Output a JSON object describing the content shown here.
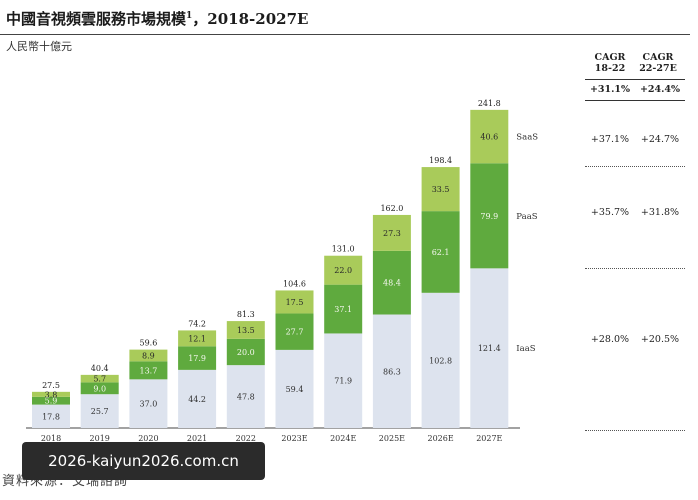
{
  "title": "中國音視頻雲服務市場規模",
  "title_note": "1",
  "title_suffix": "，2018-2027E",
  "unit": "人民幣十億元",
  "table": {
    "headers": [
      {
        "line1": "CAGR",
        "line2": "18-22"
      },
      {
        "line1": "CAGR",
        "line2": "22-27E"
      }
    ],
    "total": [
      "+31.1%",
      "+24.4%"
    ],
    "rows": [
      {
        "segment": "SaaS",
        "values": [
          "+37.1%",
          "+24.7%"
        ]
      },
      {
        "segment": "PaaS",
        "values": [
          "+35.7%",
          "+31.8%"
        ]
      },
      {
        "segment": "IaaS",
        "values": [
          "+28.0%",
          "+20.5%"
        ]
      }
    ]
  },
  "source": "資料來源：艾瑞諮詢",
  "watermark": "2026-kaiyun2026.com.cn",
  "colors": {
    "iaas": "#dde3ee",
    "paas": "#5faa3e",
    "saas": "#a9cb5a"
  },
  "chart_data": {
    "type": "bar",
    "stacked": true,
    "categories": [
      "2018",
      "2019",
      "2020",
      "2021",
      "2022",
      "2023E",
      "2024E",
      "2025E",
      "2026E",
      "2027E"
    ],
    "series": [
      {
        "name": "IaaS",
        "values": [
          17.8,
          25.7,
          37.0,
          44.2,
          47.8,
          59.4,
          71.9,
          86.3,
          102.8,
          121.4
        ]
      },
      {
        "name": "PaaS",
        "values": [
          5.9,
          9.0,
          13.7,
          17.9,
          20.0,
          27.7,
          37.1,
          48.4,
          62.1,
          79.9
        ]
      },
      {
        "name": "SaaS",
        "values": [
          3.8,
          5.7,
          8.9,
          12.1,
          13.5,
          17.5,
          22.0,
          27.3,
          33.5,
          40.6
        ]
      }
    ],
    "totals": [
      27.5,
      40.4,
      59.6,
      74.2,
      81.3,
      104.6,
      131.0,
      162.0,
      198.4,
      241.8
    ],
    "ylim": [
      0,
      241.8
    ]
  }
}
